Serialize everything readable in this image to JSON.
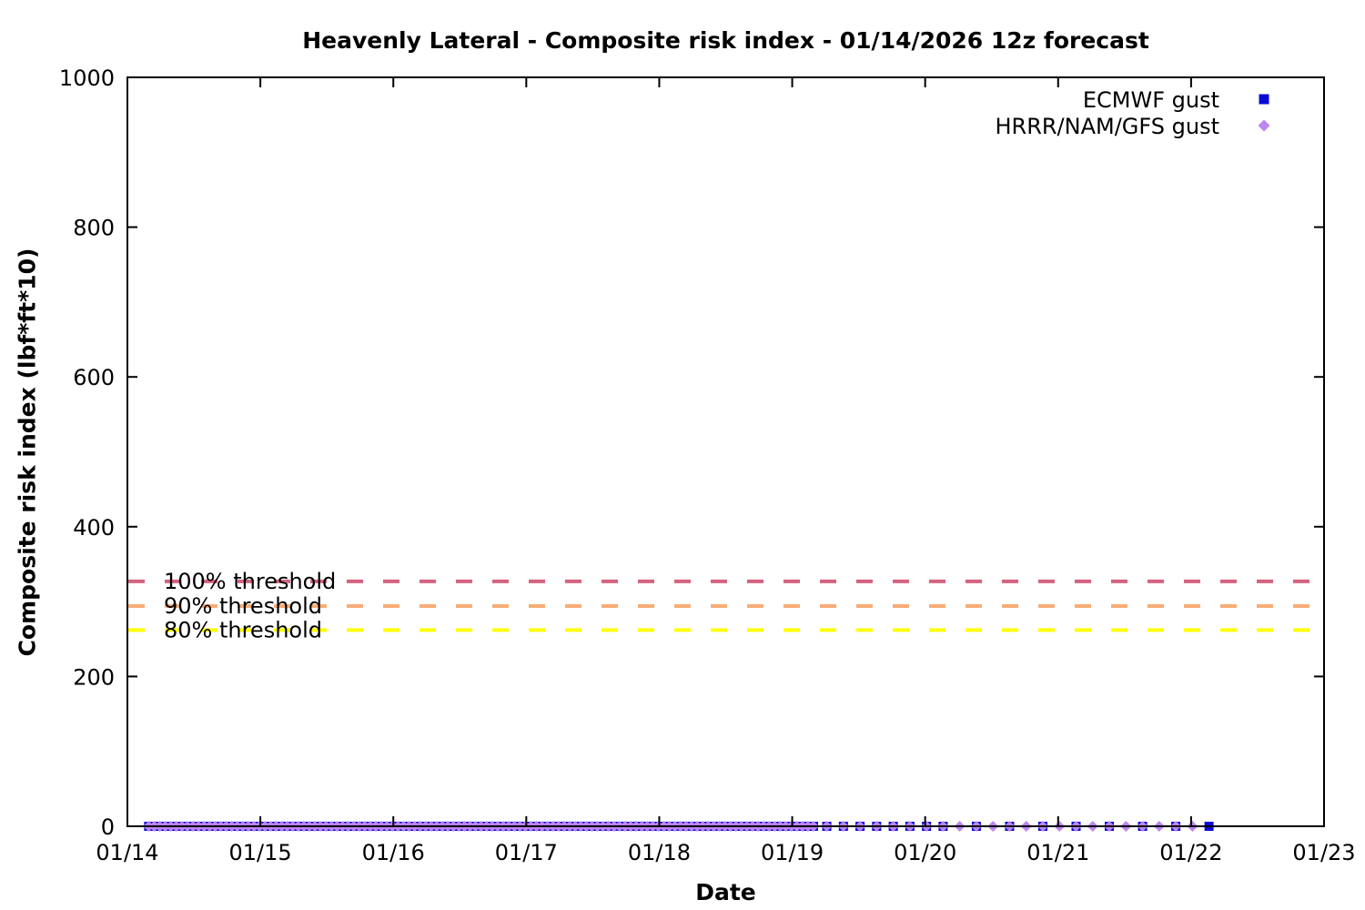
{
  "chart_data": {
    "type": "scatter",
    "title": "Heavenly Lateral - Composite risk index - 01/14/2026 12z forecast",
    "xlabel": "Date",
    "ylabel": "Composite risk index (lbf*ft*10)",
    "ylim": [
      0,
      1000
    ],
    "yticks": [
      0,
      200,
      400,
      600,
      800,
      1000
    ],
    "xticks": [
      "01/14",
      "01/15",
      "01/16",
      "01/17",
      "01/18",
      "01/19",
      "01/20",
      "01/21",
      "01/22",
      "01/23"
    ],
    "x_range_days": [
      0,
      9
    ],
    "grid": false,
    "legend_position": "top-right-inside",
    "axis_color": "#000000",
    "series": [
      {
        "name": "ECMWF gust",
        "marker": "square",
        "color": "#0b0bd6",
        "y_value": 0,
        "segments": [
          {
            "start_day": 0.16,
            "end_day": 5.2,
            "interval_hours": 1
          },
          {
            "start_day": 5.26,
            "end_day": 6.14,
            "interval_hours": 3
          },
          {
            "start_day": 6.385,
            "end_day": 8.14,
            "interval_hours": 6
          }
        ]
      },
      {
        "name": "HRRR/NAM/GFS gust",
        "marker": "diamond",
        "color": "#bd86f0",
        "y_value": 0,
        "segments": [
          {
            "start_day": 0.16,
            "end_day": 5.2,
            "interval_hours": 1
          },
          {
            "start_day": 5.26,
            "end_day": 8.02,
            "interval_hours": 3
          }
        ]
      }
    ],
    "thresholds": [
      {
        "label": "100% threshold",
        "value": 327,
        "color": "#d4627f"
      },
      {
        "label": "90% threshold",
        "value": 294,
        "color": "#f7ad76"
      },
      {
        "label": "80% threshold",
        "value": 262,
        "color": "#ffff00"
      }
    ]
  }
}
